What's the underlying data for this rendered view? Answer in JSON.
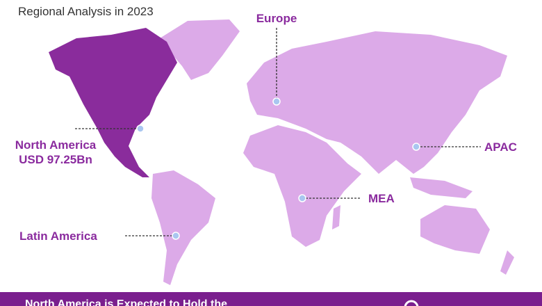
{
  "header": {
    "subtitle": "Regional Analysis in 2023"
  },
  "regions": [
    {
      "name": "Europe"
    },
    {
      "name": "North America",
      "value": "USD 97.25Bn"
    },
    {
      "name": "APAC"
    },
    {
      "name": "MEA"
    },
    {
      "name": "Latin America"
    }
  ],
  "footer": {
    "text": "North America is Expected to Hold the"
  }
}
